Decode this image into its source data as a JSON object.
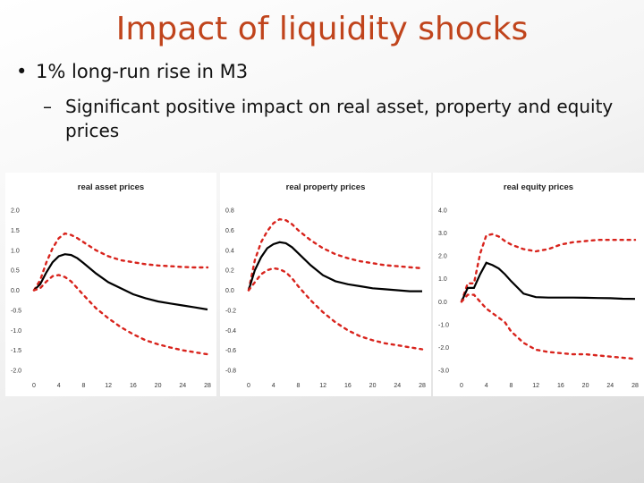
{
  "slide": {
    "title": "Impact of liquidity shocks",
    "bullet": "1% long-run rise in M3",
    "sub_bullet": "Significant positive impact on real asset, property and equity prices",
    "bullet_marker": "•",
    "sub_marker": "–"
  },
  "colors": {
    "title": "#c0441c",
    "band": "#d8231c",
    "median": "#000000"
  },
  "chart_data": [
    {
      "type": "line",
      "title": "real asset prices",
      "x": [
        0,
        1,
        2,
        3,
        4,
        5,
        6,
        7,
        8,
        10,
        12,
        14,
        16,
        18,
        20,
        22,
        24,
        26,
        28
      ],
      "xticks": [
        0,
        4,
        8,
        12,
        16,
        20,
        24,
        28
      ],
      "ylim": [
        -2.0,
        2.0
      ],
      "yticks": [
        2.0,
        1.5,
        1.0,
        0.5,
        0.0,
        -0.5,
        -1.0,
        -1.5,
        -2.0
      ],
      "ytick_labels": [
        "2.0",
        "1.5",
        "1.0",
        "0.5",
        "0.0",
        "-0.5",
        "-1.0",
        "-1.5",
        "-2.0"
      ],
      "series": [
        {
          "name": "upper band",
          "style": "dashed",
          "values": [
            0,
            0.25,
            0.7,
            1.05,
            1.3,
            1.42,
            1.38,
            1.3,
            1.2,
            1.0,
            0.85,
            0.75,
            0.7,
            0.65,
            0.62,
            0.6,
            0.58,
            0.57,
            0.57
          ]
        },
        {
          "name": "median",
          "style": "solid",
          "values": [
            0,
            0.15,
            0.45,
            0.7,
            0.85,
            0.9,
            0.88,
            0.8,
            0.68,
            0.42,
            0.2,
            0.05,
            -0.1,
            -0.2,
            -0.28,
            -0.33,
            -0.38,
            -0.43,
            -0.48
          ]
        },
        {
          "name": "lower band",
          "style": "dashed",
          "values": [
            0,
            0.05,
            0.22,
            0.35,
            0.38,
            0.33,
            0.22,
            0.05,
            -0.12,
            -0.45,
            -0.7,
            -0.92,
            -1.1,
            -1.25,
            -1.35,
            -1.43,
            -1.5,
            -1.55,
            -1.6
          ]
        }
      ]
    },
    {
      "type": "line",
      "title": "real property prices",
      "x": [
        0,
        1,
        2,
        3,
        4,
        5,
        6,
        7,
        8,
        10,
        12,
        14,
        16,
        18,
        20,
        22,
        24,
        26,
        28
      ],
      "xticks": [
        0,
        4,
        8,
        12,
        16,
        20,
        24,
        28
      ],
      "ylim": [
        -0.8,
        0.8
      ],
      "yticks": [
        0.8,
        0.6,
        0.4,
        0.2,
        0.0,
        -0.2,
        -0.4,
        -0.6,
        -0.8
      ],
      "ytick_labels": [
        "0.8",
        "0.6",
        "0.4",
        "0.2",
        "0.0",
        "-0.2",
        "-0.4",
        "-0.6",
        "-0.8"
      ],
      "series": [
        {
          "name": "upper band",
          "style": "dashed",
          "values": [
            0,
            0.3,
            0.48,
            0.59,
            0.67,
            0.71,
            0.7,
            0.66,
            0.6,
            0.5,
            0.42,
            0.36,
            0.32,
            0.29,
            0.27,
            0.25,
            0.24,
            0.23,
            0.22
          ]
        },
        {
          "name": "median",
          "style": "solid",
          "values": [
            0,
            0.2,
            0.33,
            0.42,
            0.46,
            0.48,
            0.47,
            0.43,
            0.37,
            0.25,
            0.15,
            0.09,
            0.06,
            0.04,
            0.02,
            0.01,
            0.0,
            -0.01,
            -0.01
          ]
        },
        {
          "name": "lower band",
          "style": "dashed",
          "values": [
            0,
            0.08,
            0.16,
            0.2,
            0.22,
            0.21,
            0.18,
            0.12,
            0.04,
            -0.1,
            -0.22,
            -0.32,
            -0.4,
            -0.46,
            -0.5,
            -0.53,
            -0.55,
            -0.57,
            -0.59
          ]
        }
      ]
    },
    {
      "type": "line",
      "title": "real equity prices",
      "x": [
        0,
        1,
        2,
        3,
        4,
        5,
        6,
        7,
        8,
        10,
        12,
        14,
        16,
        18,
        20,
        22,
        24,
        26,
        28
      ],
      "xticks": [
        0,
        4,
        8,
        12,
        16,
        20,
        24,
        28
      ],
      "ylim": [
        -3.0,
        4.0
      ],
      "yticks": [
        4.0,
        3.0,
        2.0,
        1.0,
        0.0,
        -1.0,
        -2.0,
        -3.0
      ],
      "ytick_labels": [
        "4.0",
        "3.0",
        "2.0",
        "1.0",
        "0.0",
        "-1.0",
        "-2.0",
        "-3.0"
      ],
      "series": [
        {
          "name": "upper band",
          "style": "dashed",
          "values": [
            0,
            0.8,
            0.8,
            2.1,
            2.9,
            2.95,
            2.85,
            2.65,
            2.5,
            2.3,
            2.2,
            2.3,
            2.5,
            2.6,
            2.65,
            2.7,
            2.7,
            2.7,
            2.7
          ]
        },
        {
          "name": "median",
          "style": "solid",
          "values": [
            0,
            0.6,
            0.6,
            1.2,
            1.7,
            1.6,
            1.45,
            1.2,
            0.9,
            0.35,
            0.2,
            0.18,
            0.18,
            0.18,
            0.17,
            0.16,
            0.15,
            0.13,
            0.12
          ]
        },
        {
          "name": "lower band",
          "style": "dashed",
          "values": [
            0,
            0.3,
            0.3,
            0.0,
            -0.3,
            -0.5,
            -0.7,
            -0.9,
            -1.3,
            -1.8,
            -2.1,
            -2.2,
            -2.25,
            -2.3,
            -2.3,
            -2.35,
            -2.4,
            -2.45,
            -2.5
          ]
        }
      ]
    }
  ]
}
